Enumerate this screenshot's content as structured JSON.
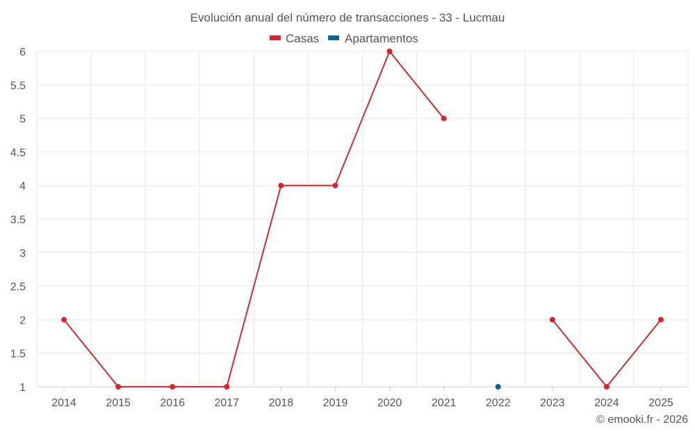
{
  "chart_data": {
    "type": "line",
    "title": "Evolución anual del número de transacciones - 33 - Lucmau",
    "categories": [
      "2014",
      "2015",
      "2016",
      "2017",
      "2018",
      "2019",
      "2020",
      "2021",
      "2022",
      "2023",
      "2024",
      "2025"
    ],
    "series": [
      {
        "name": "Casas",
        "color": "#d7262b",
        "values": [
          2,
          1,
          1,
          1,
          4,
          4,
          6,
          5,
          null,
          2,
          1,
          2
        ]
      },
      {
        "name": "Apartamentos",
        "color": "#0a6496",
        "values": [
          null,
          null,
          null,
          null,
          null,
          null,
          null,
          null,
          1,
          null,
          null,
          null
        ]
      }
    ],
    "y_ticks": [
      "1",
      "1.5",
      "2",
      "2.5",
      "3",
      "3.5",
      "4",
      "4.5",
      "5",
      "5.5",
      "6"
    ],
    "ylim": [
      1,
      6
    ],
    "grid": true,
    "legend_position": "top-center"
  },
  "credit": "© emooki.fr - 2026"
}
